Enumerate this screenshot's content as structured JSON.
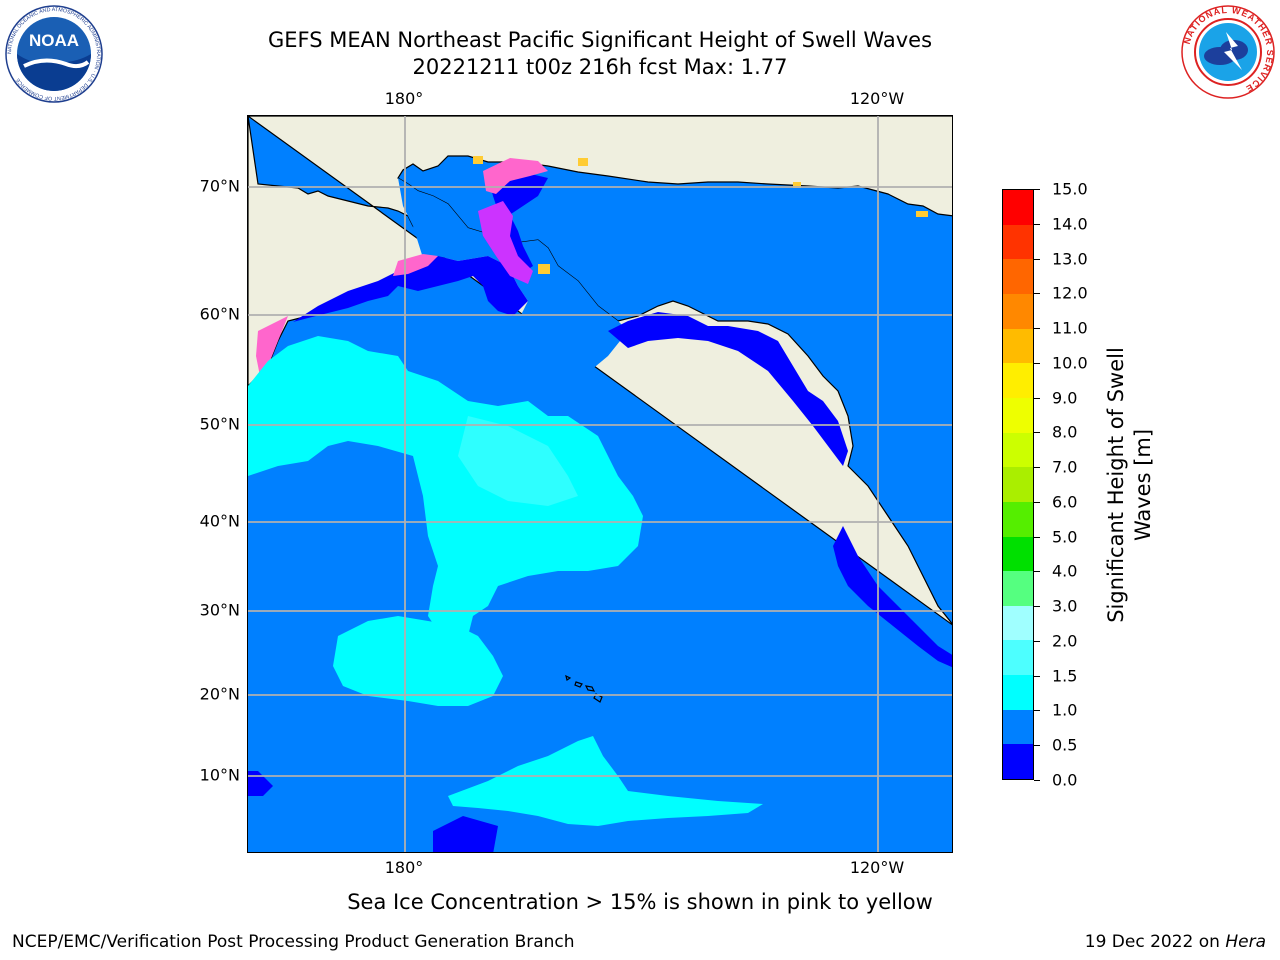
{
  "header": {
    "title_line1": "GEFS MEAN Northeast Pacific Significant Height of Swell Waves",
    "title_line2": "20221211 t00z 216h fcst   Max: 1.77"
  },
  "logos": {
    "noaa": {
      "text": "NOAA",
      "ring_text": "NATIONAL OCEANIC AND ATMOSPHERIC ADMINISTRATION · U.S. DEPARTMENT OF COMMERCE"
    },
    "nws": {
      "ring_text": "NATIONAL WEATHER SERVICE"
    }
  },
  "map": {
    "lon_labels_top": [
      "180°",
      "120°W"
    ],
    "lon_labels_bottom": [
      "180°",
      "120°W"
    ],
    "lat_labels": [
      "70°N",
      "60°N",
      "50°N",
      "40°N",
      "30°N",
      "20°N",
      "10°N"
    ],
    "colors": {
      "land": "#efefdf",
      "ocean_low": "#0000ff",
      "ocean_main": "#0080ff",
      "swell_1_5": "#00ffff",
      "swell_2": "#4dffff",
      "ice_pink": "#ff66cc",
      "ice_magenta": "#cc33ff",
      "ice_yellow": "#ffcc33",
      "grid": "#b0b0b0"
    }
  },
  "colorbar": {
    "label_line1": "Significant Height of Swell",
    "label_line2": "Waves [m]",
    "ticks": [
      "0.0",
      "0.5",
      "1.0",
      "1.5",
      "2.0",
      "3.0",
      "4.0",
      "5.0",
      "6.0",
      "7.0",
      "8.0",
      "9.0",
      "10.0",
      "11.0",
      "12.0",
      "13.0",
      "14.0",
      "15.0"
    ],
    "colors": [
      "#0000ff",
      "#0080ff",
      "#00ffff",
      "#4dffff",
      "#a0ffff",
      "#55ff80",
      "#00e000",
      "#55ee00",
      "#aaee00",
      "#ccff00",
      "#eeff00",
      "#ffee00",
      "#ffbb00",
      "#ff8800",
      "#ff6600",
      "#ff3300",
      "#ff0000"
    ]
  },
  "footer": {
    "note": "Sea Ice Concentration > 15% is shown in pink to yellow",
    "left": "NCEP/EMC/Verification Post Processing Product Generation Branch",
    "right_prefix": "19 Dec 2022 on ",
    "right_system": "Hera"
  }
}
